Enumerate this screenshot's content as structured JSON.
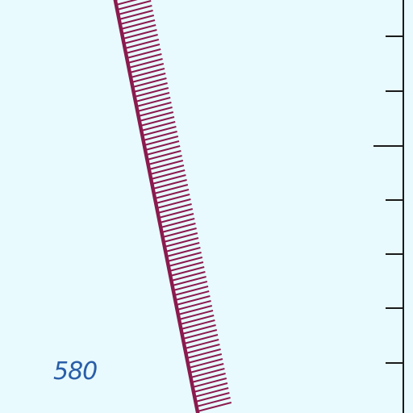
{
  "map": {
    "background_color": "#e8fafd",
    "feature": {
      "type": "hatched-boundary-line",
      "color": "#8b1a4e"
    },
    "scale_bar": {
      "color": "#1a1a1a",
      "orientation": "vertical",
      "position": "right-edge"
    },
    "depth_label": {
      "text": "580",
      "color": "#2a5ea8"
    }
  }
}
